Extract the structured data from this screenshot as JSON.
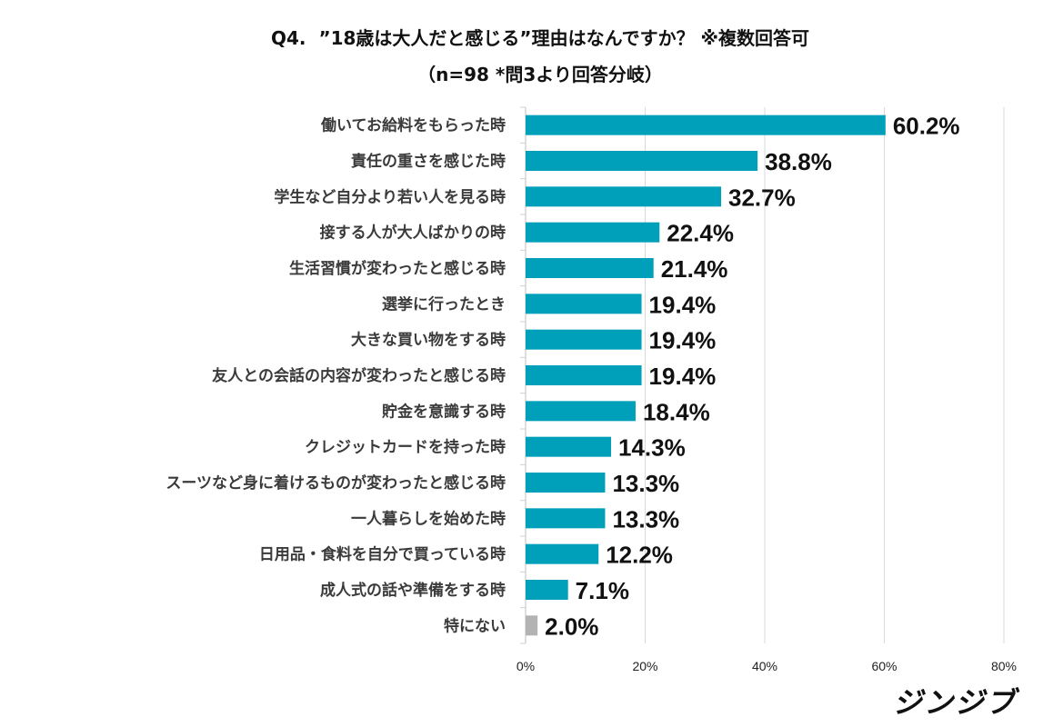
{
  "chart_data": {
    "type": "bar",
    "orientation": "horizontal",
    "title": "Q4.  ”18歳は大人だと感じる”理由はなんですか？ ※複数回答可",
    "subtitle": "（n=98 *問3より回答分岐）",
    "categories": [
      "働いてお給料をもらった時",
      "責任の重さを感じた時",
      "学生など自分より若い人を見る時",
      "接する人が大人ばかりの時",
      "生活習慣が変わったと感じる時",
      "選挙に行ったとき",
      "大きな買い物をする時",
      "友人との会話の内容が変わったと感じる時",
      "貯金を意識する時",
      "クレジットカードを持った時",
      "スーツなど身に着けるものが変わったと感じる時",
      "一人暮らしを始めた時",
      "日用品・食料を自分で買っている時",
      "成人式の話や準備をする時",
      "特にない"
    ],
    "values": [
      60.2,
      38.8,
      32.7,
      22.4,
      21.4,
      19.4,
      19.4,
      19.4,
      18.4,
      14.3,
      13.3,
      13.3,
      12.2,
      7.1,
      2.0
    ],
    "data_labels": [
      "60.2%",
      "38.8%",
      "32.7%",
      "22.4%",
      "21.4%",
      "19.4%",
      "19.4%",
      "19.4%",
      "18.4%",
      "14.3%",
      "13.3%",
      "13.3%",
      "12.2%",
      "7.1%",
      "2.0%"
    ],
    "xlim": [
      0,
      80
    ],
    "x_ticks": [
      "0%",
      "20%",
      "40%",
      "60%",
      "80%"
    ],
    "grid": true,
    "colors": {
      "bar": "#00A0BA",
      "bar_none": "#B3B3B3",
      "grid": "#D9D9D9"
    }
  },
  "logo_text": "ジンジブ"
}
